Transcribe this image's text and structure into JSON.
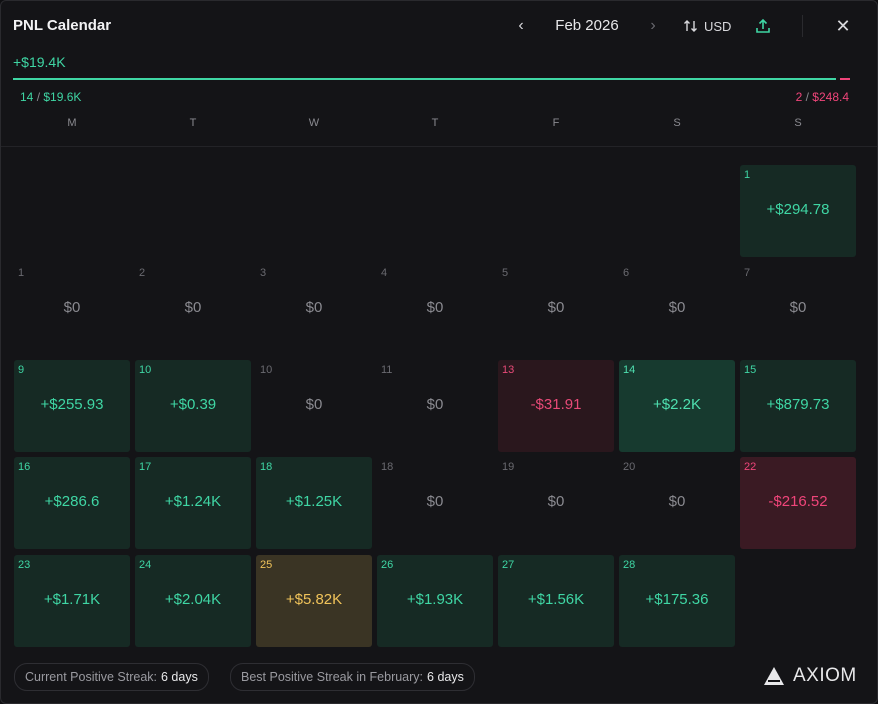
{
  "header": {
    "title": "PNL Calendar",
    "month": "Feb 2026",
    "currency": "USD",
    "prev_icon": "chevron-left-icon",
    "next_icon": "chevron-right-icon",
    "close_icon": "close-icon"
  },
  "summary": {
    "total": "+$19.4K",
    "win_days": "14",
    "win_amount": "$19.6K",
    "loss_days": "2",
    "loss_amount": "$248.4",
    "win_share": 0.988
  },
  "weekdays": [
    "M",
    "T",
    "W",
    "T",
    "F",
    "S",
    "S"
  ],
  "weeks": [
    [
      null,
      null,
      null,
      null,
      null,
      null,
      {
        "num": "1",
        "value": "+$294.78",
        "tone": "pos"
      }
    ],
    [
      {
        "num": "1",
        "value": "$0",
        "tone": "zero"
      },
      {
        "num": "2",
        "value": "$0",
        "tone": "zero"
      },
      {
        "num": "3",
        "value": "$0",
        "tone": "zero"
      },
      {
        "num": "4",
        "value": "$0",
        "tone": "zero"
      },
      {
        "num": "5",
        "value": "$0",
        "tone": "zero"
      },
      {
        "num": "6",
        "value": "$0",
        "tone": "zero"
      },
      {
        "num": "7",
        "value": "$0",
        "tone": "zero"
      }
    ],
    [
      {
        "num": "9",
        "value": "+$255.93",
        "tone": "pos"
      },
      {
        "num": "10",
        "value": "+$0.39",
        "tone": "pos"
      },
      {
        "num": "10",
        "value": "$0",
        "tone": "zero"
      },
      {
        "num": "11",
        "value": "$0",
        "tone": "zero"
      },
      {
        "num": "13",
        "value": "-$31.91",
        "tone": "neg"
      },
      {
        "num": "14",
        "value": "+$2.2K",
        "tone": "pos2"
      },
      {
        "num": "15",
        "value": "+$879.73",
        "tone": "pos"
      }
    ],
    [
      {
        "num": "16",
        "value": "+$286.6",
        "tone": "pos"
      },
      {
        "num": "17",
        "value": "+$1.24K",
        "tone": "pos"
      },
      {
        "num": "18",
        "value": "+$1.25K",
        "tone": "pos"
      },
      {
        "num": "18",
        "value": "$0",
        "tone": "zero"
      },
      {
        "num": "19",
        "value": "$0",
        "tone": "zero"
      },
      {
        "num": "20",
        "value": "$0",
        "tone": "zero"
      },
      {
        "num": "22",
        "value": "-$216.52",
        "tone": "neg2"
      }
    ],
    [
      {
        "num": "23",
        "value": "+$1.71K",
        "tone": "pos"
      },
      {
        "num": "24",
        "value": "+$2.04K",
        "tone": "pos"
      },
      {
        "num": "25",
        "value": "+$5.82K",
        "tone": "gold"
      },
      {
        "num": "26",
        "value": "+$1.93K",
        "tone": "pos"
      },
      {
        "num": "27",
        "value": "+$1.56K",
        "tone": "pos"
      },
      {
        "num": "28",
        "value": "+$175.36",
        "tone": "pos"
      },
      null
    ]
  ],
  "footer": {
    "current_streak_label": "Current Positive Streak:",
    "current_streak_value": "6 days",
    "best_streak_label": "Best Positive Streak in February:",
    "best_streak_value": "6 days",
    "brand": "AXIOM"
  },
  "colors": {
    "positive": "#3fd6a4",
    "negative": "#f0457a",
    "highlight": "#f0c35a",
    "background": "#141417"
  }
}
